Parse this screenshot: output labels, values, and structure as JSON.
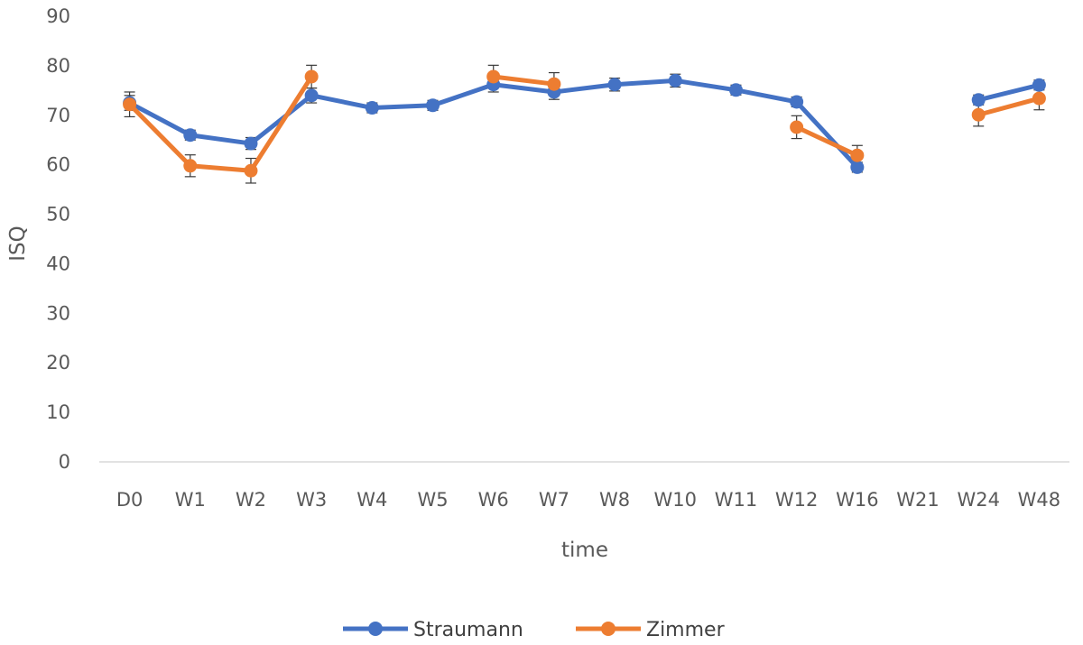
{
  "chart_data": {
    "type": "line",
    "title": "",
    "xlabel": "time",
    "ylabel": "ISQ",
    "categories": [
      "D0",
      "W1",
      "W2",
      "W3",
      "W4",
      "W5",
      "W6",
      "W7",
      "W8",
      "W10",
      "W11",
      "W12",
      "W16",
      "W21",
      "W24",
      "W48"
    ],
    "ylim": [
      0,
      90
    ],
    "yticks": [
      0,
      10,
      20,
      30,
      40,
      50,
      60,
      70,
      80,
      90
    ],
    "grid": false,
    "legend_position": "bottom",
    "series": [
      {
        "name": "Straumann",
        "color": "#4472C4",
        "values": [
          72.5,
          66,
          64.3,
          74,
          71.5,
          72,
          76.2,
          74.7,
          76.2,
          77,
          75.1,
          72.7,
          59.5,
          null,
          73.1,
          76.1
        ],
        "errors": [
          1.5,
          1.0,
          1.2,
          1.5,
          1.0,
          1.0,
          1.5,
          1.5,
          1.3,
          1.3,
          1.0,
          1.0,
          1.0,
          null,
          1.0,
          1.0
        ]
      },
      {
        "name": "Zimmer",
        "color": "#ED7D31",
        "values": [
          72.2,
          59.8,
          58.8,
          77.8,
          null,
          null,
          77.8,
          76.3,
          null,
          null,
          null,
          67.6,
          61.9,
          null,
          70.1,
          73.4
        ],
        "errors": [
          2.5,
          2.2,
          2.5,
          2.3,
          null,
          null,
          2.3,
          2.3,
          null,
          null,
          null,
          2.3,
          2.0,
          null,
          2.3,
          2.3
        ]
      }
    ]
  }
}
